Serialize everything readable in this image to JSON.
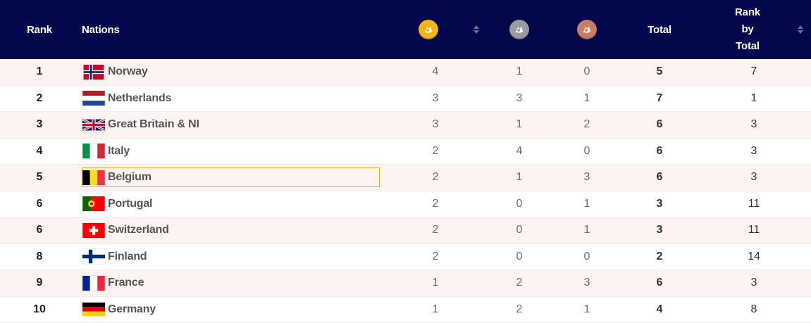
{
  "header": {
    "rank": "Rank",
    "nations": "Nations",
    "total": "Total",
    "rank_by_total_line1": "Rank",
    "rank_by_total_line2": "by",
    "rank_by_total_line3": "Total",
    "gold_icon": "gold-medal-icon",
    "silver_icon": "silver-medal-icon",
    "bronze_icon": "bronze-medal-icon",
    "colors": {
      "background": "#03074b",
      "gold": "#f3b51b",
      "silver": "#9a9ca0",
      "bronze": "#c97d62"
    }
  },
  "rows": [
    {
      "rank": "1",
      "nation": "Norway",
      "flag": "norway-flag-icon",
      "gold": "4",
      "silver": "1",
      "bronze": "0",
      "total": "5",
      "rank_by_total": "7"
    },
    {
      "rank": "2",
      "nation": "Netherlands",
      "flag": "netherlands-flag-icon",
      "gold": "3",
      "silver": "3",
      "bronze": "1",
      "total": "7",
      "rank_by_total": "1"
    },
    {
      "rank": "3",
      "nation": "Great Britain & NI",
      "flag": "great-britain-flag-icon",
      "gold": "3",
      "silver": "1",
      "bronze": "2",
      "total": "6",
      "rank_by_total": "3"
    },
    {
      "rank": "4",
      "nation": "Italy",
      "flag": "italy-flag-icon",
      "gold": "2",
      "silver": "4",
      "bronze": "0",
      "total": "6",
      "rank_by_total": "3"
    },
    {
      "rank": "5",
      "nation": "Belgium",
      "flag": "belgium-flag-icon",
      "gold": "2",
      "silver": "1",
      "bronze": "3",
      "total": "6",
      "rank_by_total": "3"
    },
    {
      "rank": "6",
      "nation": "Portugal",
      "flag": "portugal-flag-icon",
      "gold": "2",
      "silver": "0",
      "bronze": "1",
      "total": "3",
      "rank_by_total": "11"
    },
    {
      "rank": "6",
      "nation": "Switzerland",
      "flag": "switzerland-flag-icon",
      "gold": "2",
      "silver": "0",
      "bronze": "1",
      "total": "3",
      "rank_by_total": "11"
    },
    {
      "rank": "8",
      "nation": "Finland",
      "flag": "finland-flag-icon",
      "gold": "2",
      "silver": "0",
      "bronze": "0",
      "total": "2",
      "rank_by_total": "14"
    },
    {
      "rank": "9",
      "nation": "France",
      "flag": "france-flag-icon",
      "gold": "1",
      "silver": "2",
      "bronze": "3",
      "total": "6",
      "rank_by_total": "3"
    },
    {
      "rank": "10",
      "nation": "Germany",
      "flag": "germany-flag-icon",
      "gold": "1",
      "silver": "2",
      "bronze": "1",
      "total": "4",
      "rank_by_total": "8"
    }
  ]
}
